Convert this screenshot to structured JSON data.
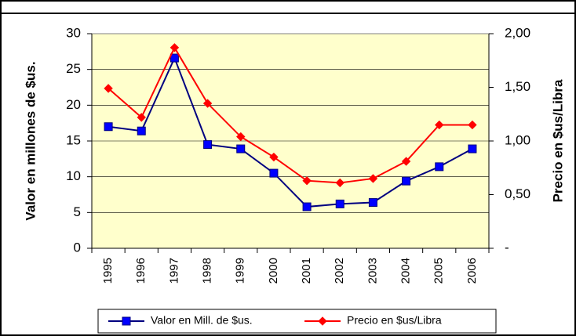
{
  "chart_data": {
    "type": "line",
    "categories": [
      "1995",
      "1996",
      "1997",
      "1998",
      "1999",
      "2000",
      "2001",
      "2002",
      "2003",
      "2004",
      "2005",
      "2006"
    ],
    "ylabel": "Valor en millones de $us.",
    "y2label": "Precio en $us/Libra",
    "ylim": [
      0,
      30
    ],
    "yticks": [
      0,
      5,
      10,
      15,
      20,
      25,
      30
    ],
    "y2lim": [
      0,
      2
    ],
    "y2ticks": [
      {
        "value": 0,
        "label": "-"
      },
      {
        "value": 0.5,
        "label": "0,50"
      },
      {
        "value": 1,
        "label": "1,00"
      },
      {
        "value": 1.5,
        "label": "1,50"
      },
      {
        "value": 2,
        "label": "2,00"
      }
    ],
    "grid": true,
    "series": [
      {
        "name": "Valor en Mill. de $us.",
        "color": "#000080",
        "marker_color": "#0000ff",
        "values": [
          17.0,
          16.4,
          26.6,
          14.5,
          13.9,
          10.5,
          5.8,
          6.2,
          6.4,
          9.4,
          11.4,
          13.9
        ]
      },
      {
        "name": "Precio en $us/Libra",
        "color": "#ff0000",
        "marker_color": "#ff0000",
        "axis": "y2",
        "values": [
          1.49,
          1.22,
          1.87,
          1.35,
          1.04,
          0.85,
          0.63,
          0.61,
          0.65,
          0.81,
          1.15,
          1.15
        ]
      }
    ]
  }
}
